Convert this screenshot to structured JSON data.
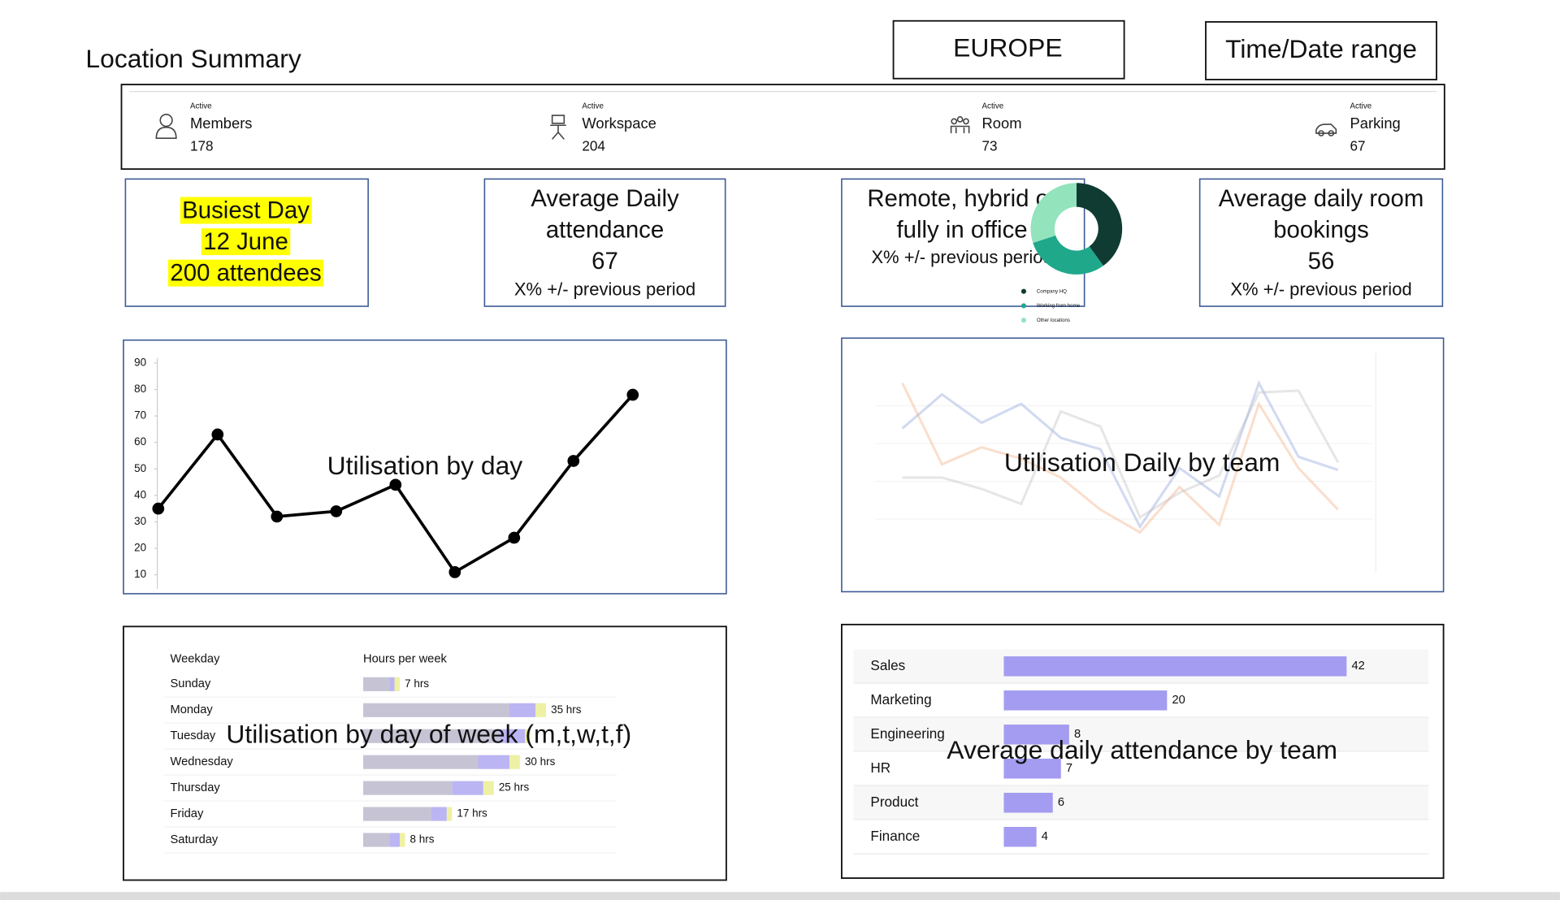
{
  "header": {
    "title": "Location Summary",
    "region": "EUROPE",
    "date_range": "Time/Date range"
  },
  "stats": [
    {
      "caption": "Active",
      "label": "Members",
      "value": 178
    },
    {
      "caption": "Active",
      "label": "Workspace",
      "value": 204
    },
    {
      "caption": "Active",
      "label": "Room",
      "value": 73
    },
    {
      "caption": "Active",
      "label": "Parking",
      "value": 67
    }
  ],
  "cards": {
    "busiest": {
      "lines": [
        "Busiest Day",
        "12 June",
        "200 attendees"
      ]
    },
    "attendance": {
      "title_lines": [
        "Average Daily",
        "attendance"
      ],
      "value": 67,
      "change": "X% +/- previous period"
    },
    "work_mode": {
      "title_lines": [
        "Remote, hybrid or",
        "fully in office"
      ],
      "change": "X% +/- previous period"
    },
    "room_bookings": {
      "title_lines": [
        "Average daily room",
        "bookings"
      ],
      "value": 56,
      "change": "X% +/- previous period"
    }
  },
  "chart_data": [
    {
      "type": "pie",
      "categories": [
        "Company HQ",
        "Working from home",
        "Other locations"
      ],
      "values": [
        40,
        30,
        30
      ],
      "colors": [
        "#0f3b32",
        "#1fa88a",
        "#93e3bd"
      ],
      "donut": true
    },
    {
      "type": "line",
      "title": "Utilisation by day",
      "categories": [
        null,
        null,
        null,
        null,
        null,
        null,
        null,
        null,
        null
      ],
      "values": [
        35,
        63,
        32,
        34,
        44,
        11,
        24,
        53,
        78
      ],
      "color": "#000000",
      "ylim": [
        5,
        92
      ],
      "yticks": [
        10,
        20,
        30,
        40,
        50,
        60,
        70,
        80,
        90
      ]
    },
    {
      "type": "line",
      "title": "Utilisation Daily by team",
      "categories": [
        null,
        null,
        null,
        null,
        null,
        null,
        null,
        null,
        null,
        null,
        null,
        null
      ],
      "series": [
        {
          "color": "#7f96d8",
          "values": [
            68,
            86,
            71,
            81,
            63,
            57,
            16,
            47,
            32,
            92,
            53,
            46
          ]
        },
        {
          "color": "#f0a070",
          "values": [
            92,
            49,
            58,
            52,
            42,
            25,
            13,
            37,
            17,
            81,
            47,
            25
          ]
        },
        {
          "color": "#b8b8b8",
          "values": [
            42,
            42,
            36,
            28,
            77,
            69,
            21,
            34,
            43,
            87,
            88,
            50
          ]
        }
      ],
      "ylim": [
        0,
        100
      ]
    },
    {
      "type": "bar",
      "orientation": "horizontal",
      "stacked": true,
      "title": "Utilisation by day of week (m,t,w,t,f)",
      "category_header": "Weekday",
      "value_header": "Hours per week",
      "categories": [
        "Sunday",
        "Monday",
        "Tuesday",
        "Wednesday",
        "Thursday",
        "Friday",
        "Saturday"
      ],
      "series": [
        {
          "color": "#c6c4d4",
          "values": [
            5,
            28,
            26,
            22,
            17,
            13,
            5
          ]
        },
        {
          "color": "#bbb5f3",
          "values": [
            1,
            5,
            5,
            6,
            6,
            3,
            2
          ]
        },
        {
          "color": "#eef0a4",
          "values": [
            1,
            2,
            1,
            2,
            2,
            1,
            1
          ]
        }
      ],
      "totals": [
        7,
        35,
        null,
        30,
        25,
        17,
        8
      ],
      "value_labels": [
        "7 hrs",
        "35 hrs",
        null,
        "30 hrs",
        "25 hrs",
        "17 hrs",
        "8 hrs"
      ],
      "xlim": [
        0,
        40
      ]
    },
    {
      "type": "bar",
      "orientation": "horizontal",
      "title": "Average daily attendance by team",
      "categories": [
        "Sales",
        "Marketing",
        "Engineering",
        "HR",
        "Product",
        "Finance"
      ],
      "values": [
        42,
        20,
        8,
        7,
        6,
        4
      ],
      "color": "#a39cf0",
      "xlim": [
        0,
        44
      ]
    }
  ]
}
